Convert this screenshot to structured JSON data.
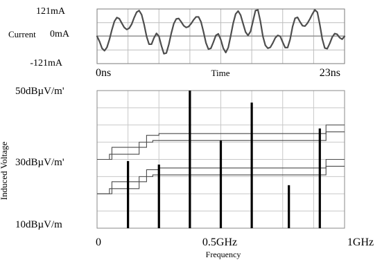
{
  "chart_data": [
    {
      "type": "line",
      "title": "",
      "ylabel": "Current",
      "xlabel": "Time",
      "x_unit": "ns",
      "y_unit": "mA",
      "xlim": [
        0,
        23
      ],
      "ylim": [
        -121,
        121
      ],
      "yticklabels": [
        "121mA",
        "0mA",
        "-121mA"
      ],
      "xticklabels": [
        "0ns",
        "23ns"
      ],
      "grid": true,
      "series": [
        {
          "values_x": [
            0,
            0.23,
            0.46,
            0.69,
            0.92,
            1.15,
            1.38,
            1.61,
            1.84,
            2.07,
            2.3,
            2.53,
            2.76,
            2.99,
            3.22,
            3.45,
            3.68,
            3.91,
            4.14,
            4.37,
            4.6,
            4.83,
            5.06,
            5.29,
            5.52,
            5.75,
            5.98,
            6.21,
            6.44,
            6.67,
            6.9,
            7.13,
            7.36,
            7.59,
            7.82,
            8.05,
            8.28,
            8.51,
            8.74,
            8.97,
            9.2,
            9.43,
            9.66,
            9.89,
            10.12,
            10.35,
            10.58,
            10.81,
            11.04,
            11.27,
            11.5,
            11.73,
            11.96,
            12.19,
            12.42,
            12.65,
            12.88,
            13.11,
            13.34,
            13.57,
            13.8,
            14.03,
            14.26,
            14.49,
            14.72,
            14.95,
            15.18,
            15.41,
            15.64,
            15.87,
            16.1,
            16.33,
            16.56,
            16.79,
            17.02,
            17.25,
            17.48,
            17.71,
            17.94,
            18.17,
            18.4,
            18.63,
            18.86,
            19.09,
            19.32,
            19.55,
            19.78,
            20.01,
            20.24,
            20.47,
            20.7,
            20.93,
            21.16,
            21.39,
            21.62,
            21.85,
            22.08,
            22.31,
            22.54,
            22.77,
            23
          ],
          "values": [
            0,
            -23,
            -53,
            -64,
            -49,
            -14,
            29,
            66,
            83,
            78,
            58,
            39,
            30,
            36,
            54,
            83,
            107,
            114,
            96,
            53,
            0,
            -35,
            -35,
            -7,
            13,
            0,
            -42,
            -77,
            -74,
            -36,
            14,
            56,
            77,
            79,
            64,
            47,
            39,
            43,
            56,
            73,
            86,
            86,
            64,
            20,
            -29,
            -57,
            -53,
            -26,
            4,
            11,
            -15,
            -53,
            -72,
            -50,
            2,
            58,
            99,
            112,
            94,
            56,
            19,
            4,
            21,
            67,
            114,
            117,
            66,
            0,
            -40,
            -53,
            -49,
            -30,
            -7,
            4,
            0,
            -26,
            -50,
            -50,
            -14,
            43,
            80,
            84,
            64,
            47,
            45,
            58,
            77,
            99,
            117,
            107,
            52,
            -12,
            -52,
            -55,
            -32,
            -4,
            12,
            9,
            -6,
            -13,
            0
          ]
        }
      ]
    },
    {
      "type": "bar",
      "title": "",
      "ylabel": "Induced Voltage",
      "xlabel": "Frequency",
      "x_unit": "GHz",
      "y_unit": "dBµV/m",
      "xlim": [
        0,
        1
      ],
      "ylim": [
        10,
        50
      ],
      "yticklabels": [
        "50dBµV/m'",
        "30dBµV/m'",
        "10dBµV/m"
      ],
      "xticklabels": [
        "0",
        "0.5GHz",
        "1GHz"
      ],
      "grid": true,
      "bars": {
        "x": [
          0.125,
          0.25,
          0.375,
          0.5,
          0.625,
          0.775,
          0.9
        ],
        "values": [
          29.5,
          28.5,
          50,
          35.5,
          46.5,
          22.5,
          39
        ]
      },
      "limit_lines": [
        {
          "x": [
            0,
            0.06,
            0.06,
            0.2,
            0.2,
            0.25,
            0.25,
            0.925,
            0.925,
            1
          ],
          "y": [
            30,
            30,
            33.5,
            33.5,
            37,
            37,
            37.5,
            37.5,
            40,
            40
          ]
        },
        {
          "x": [
            0,
            0.05,
            0.05,
            0.17,
            0.17,
            0.225,
            0.225,
            0.925,
            0.925,
            1
          ],
          "y": [
            30,
            30,
            31.5,
            31.5,
            35,
            35,
            35.5,
            35.5,
            38,
            38
          ]
        },
        {
          "x": [
            0,
            0.06,
            0.06,
            0.2,
            0.2,
            0.25,
            0.25,
            0.925,
            0.925,
            1
          ],
          "y": [
            20,
            20,
            23.5,
            23.5,
            27,
            27,
            27.5,
            27.5,
            30,
            30
          ]
        },
        {
          "x": [
            0,
            0.05,
            0.05,
            0.17,
            0.17,
            0.225,
            0.225,
            0.925,
            0.925,
            1
          ],
          "y": [
            20,
            20,
            21.5,
            21.5,
            25,
            25,
            25.5,
            25.5,
            28,
            28
          ]
        }
      ]
    }
  ]
}
